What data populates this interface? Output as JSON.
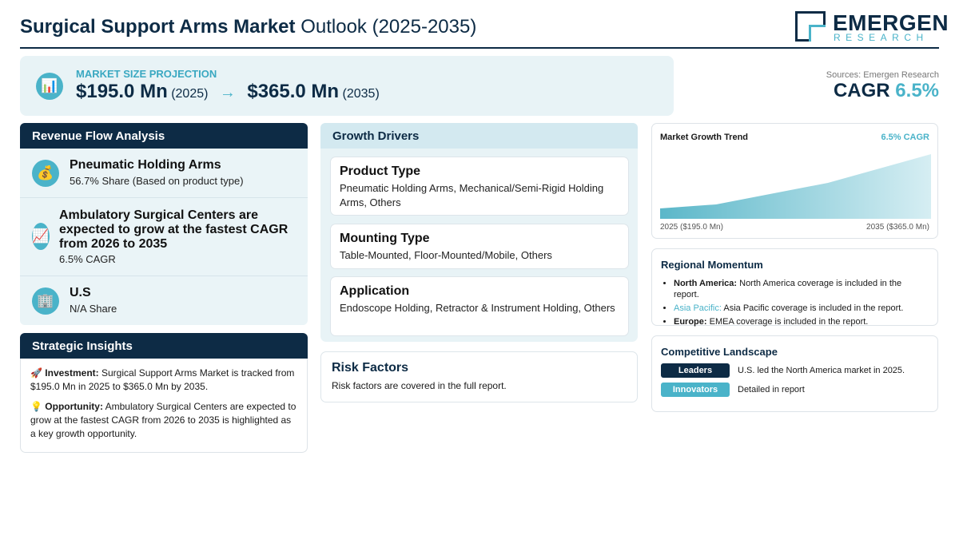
{
  "header": {
    "title_bold": "Surgical Support Arms Market",
    "title_rest": "Outlook (2025-2035)",
    "logo_main": "EMERGEN",
    "logo_sub": "RESEARCH"
  },
  "projection": {
    "icon": "📊",
    "label": "MARKET SIZE PROJECTION",
    "start_value": "$195.0 Mn",
    "start_year": "(2025)",
    "arrow": "→",
    "end_value": "$365.0 Mn",
    "end_year": "(2035)"
  },
  "summary": {
    "source": "Sources: Emergen Research",
    "cagr_label": "CAGR",
    "cagr_value": "6.5%"
  },
  "revenue_flow": {
    "title": "Revenue Flow Analysis",
    "items": [
      {
        "icon": "💰",
        "title": "Pneumatic Holding Arms",
        "detail": "56.7% Share (Based on product type)"
      },
      {
        "icon": "📈",
        "title": "Ambulatory Surgical Centers are expected to grow at the fastest CAGR from 2026 to 2035",
        "detail": "6.5% CAGR"
      },
      {
        "icon": "🏢",
        "title": "U.S",
        "detail": "N/A Share"
      }
    ]
  },
  "strategic_insights": {
    "title": "Strategic Insights",
    "items": [
      {
        "icon": "🚀",
        "label": "Investment:",
        "text": "Surgical Support Arms Market is tracked from $195.0 Mn in 2025 to $365.0 Mn by 2035."
      },
      {
        "icon": "💡",
        "label": "Opportunity:",
        "text": "Ambulatory Surgical Centers are expected to grow at the fastest CAGR from 2026 to 2035 is highlighted as a key growth opportunity."
      }
    ]
  },
  "growth_drivers": {
    "title": "Growth Drivers",
    "cards": [
      {
        "title": "Product Type",
        "text": "Pneumatic Holding Arms, Mechanical/Semi-Rigid Holding Arms, Others"
      },
      {
        "title": "Mounting Type",
        "text": "Table-Mounted, Floor-Mounted/Mobile, Others"
      },
      {
        "title": "Application",
        "text": "Endoscope Holding, Retractor & Instrument Holding, Others"
      }
    ]
  },
  "risk_factors": {
    "title": "Risk Factors",
    "text": "Risk factors are covered in the full report."
  },
  "trend": {
    "title": "Market Growth Trend",
    "badge": "6.5% CAGR",
    "start_label": "2025 ($195.0 Mn)",
    "end_label": "2035 ($365.0 Mn)"
  },
  "regional_momentum": {
    "title": "Regional Momentum",
    "items": [
      {
        "region": "North America:",
        "text": "North America coverage is included in the report."
      },
      {
        "region": "Asia Pacific:",
        "text": "Asia Pacific coverage is included in the report."
      },
      {
        "region": "Europe:",
        "text": "EMEA coverage is included in the report."
      }
    ]
  },
  "competitive_landscape": {
    "title": "Competitive Landscape",
    "items": [
      {
        "badge": "Leaders",
        "text": "U.S. led the North America market in 2025."
      },
      {
        "badge": "Innovators",
        "text": "Detailed in report"
      }
    ]
  }
}
